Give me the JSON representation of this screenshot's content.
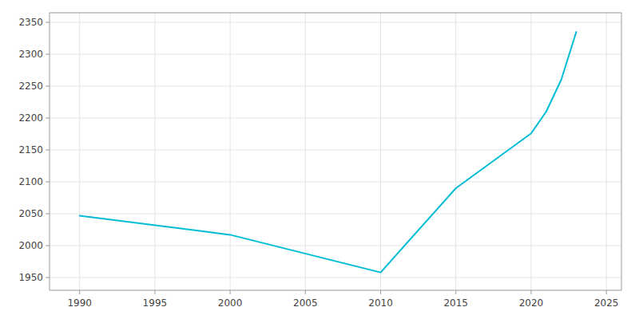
{
  "chart_data": {
    "type": "line",
    "x": [
      1990,
      2000,
      2010,
      2015,
      2020,
      2021,
      2022,
      2023
    ],
    "values": [
      2047,
      2017,
      1958,
      2090,
      2176,
      2210,
      2260,
      2335
    ],
    "color": "#00BCD4",
    "xlim": [
      1988,
      2026
    ],
    "ylim": [
      1930,
      2365
    ],
    "xticks": [
      1990,
      1995,
      2000,
      2005,
      2010,
      2015,
      2020,
      2025
    ],
    "yticks": [
      1950,
      2000,
      2050,
      2100,
      2150,
      2200,
      2250,
      2300,
      2350
    ],
    "grid": true
  }
}
